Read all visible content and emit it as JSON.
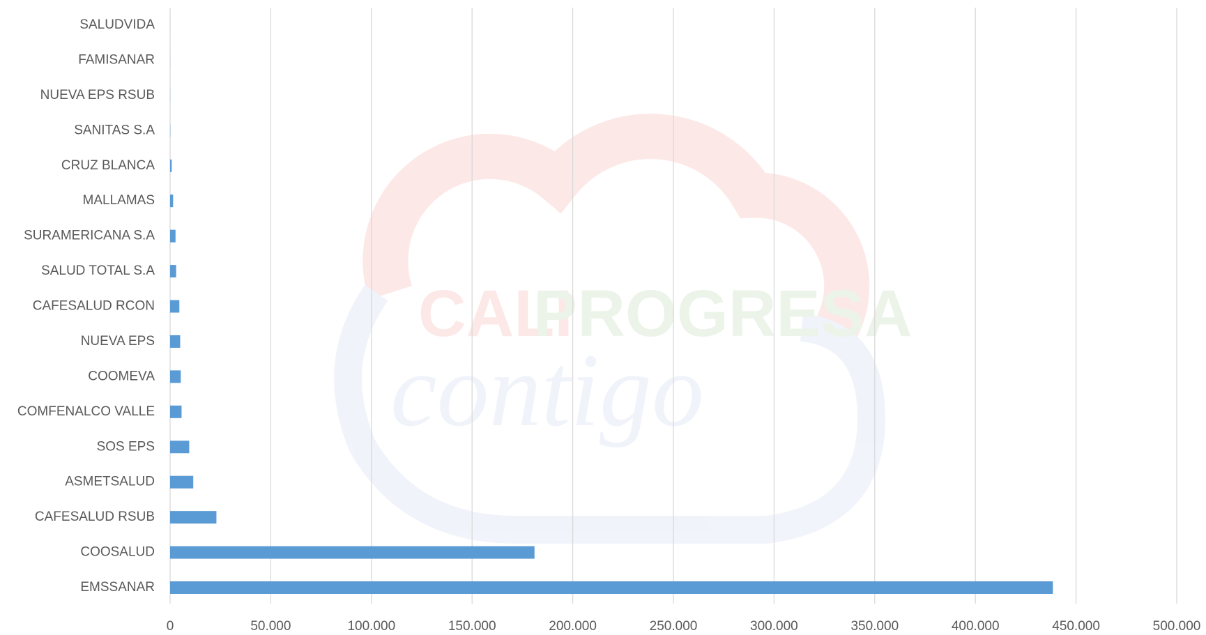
{
  "chart_data": {
    "type": "bar",
    "orientation": "horizontal",
    "categories": [
      "SALUDVIDA",
      "FAMISANAR",
      "NUEVA EPS RSUB",
      "SANITAS S.A",
      "CRUZ BLANCA",
      "MALLAMAS",
      "SURAMERICANA S.A",
      "SALUD TOTAL S.A",
      "CAFESALUD RCON",
      "NUEVA EPS",
      "COOMEVA",
      "COMFENALCO VALLE",
      "SOS EPS",
      "ASMETSALUD",
      "CAFESALUD RSUB",
      "COOSALUD",
      "EMSSANAR"
    ],
    "values": [
      20,
      30,
      50,
      100,
      800,
      1500,
      2700,
      3000,
      4600,
      5000,
      5300,
      5700,
      9500,
      11500,
      23000,
      181000,
      438500
    ],
    "color": "#5b9bd5",
    "xlim": [
      0,
      500000
    ],
    "xticks": [
      0,
      {
        "value": 50000,
        "label": "50.000"
      },
      {
        "value": 100000,
        "label": "100.000"
      },
      {
        "value": 150000,
        "label": "150.000"
      },
      {
        "value": 200000,
        "label": "200.000"
      },
      {
        "value": 250000,
        "label": "250.000"
      },
      {
        "value": 300000,
        "label": "300.000"
      },
      {
        "value": 350000,
        "label": "350.000"
      },
      {
        "value": 400000,
        "label": "400.000"
      },
      {
        "value": 450000,
        "label": "450.000"
      },
      {
        "value": 500000,
        "label": "500.000"
      }
    ],
    "grid": true,
    "watermark": {
      "brand1": "CALI",
      "brand2": "PROGRESA",
      "script": "contigo"
    }
  }
}
